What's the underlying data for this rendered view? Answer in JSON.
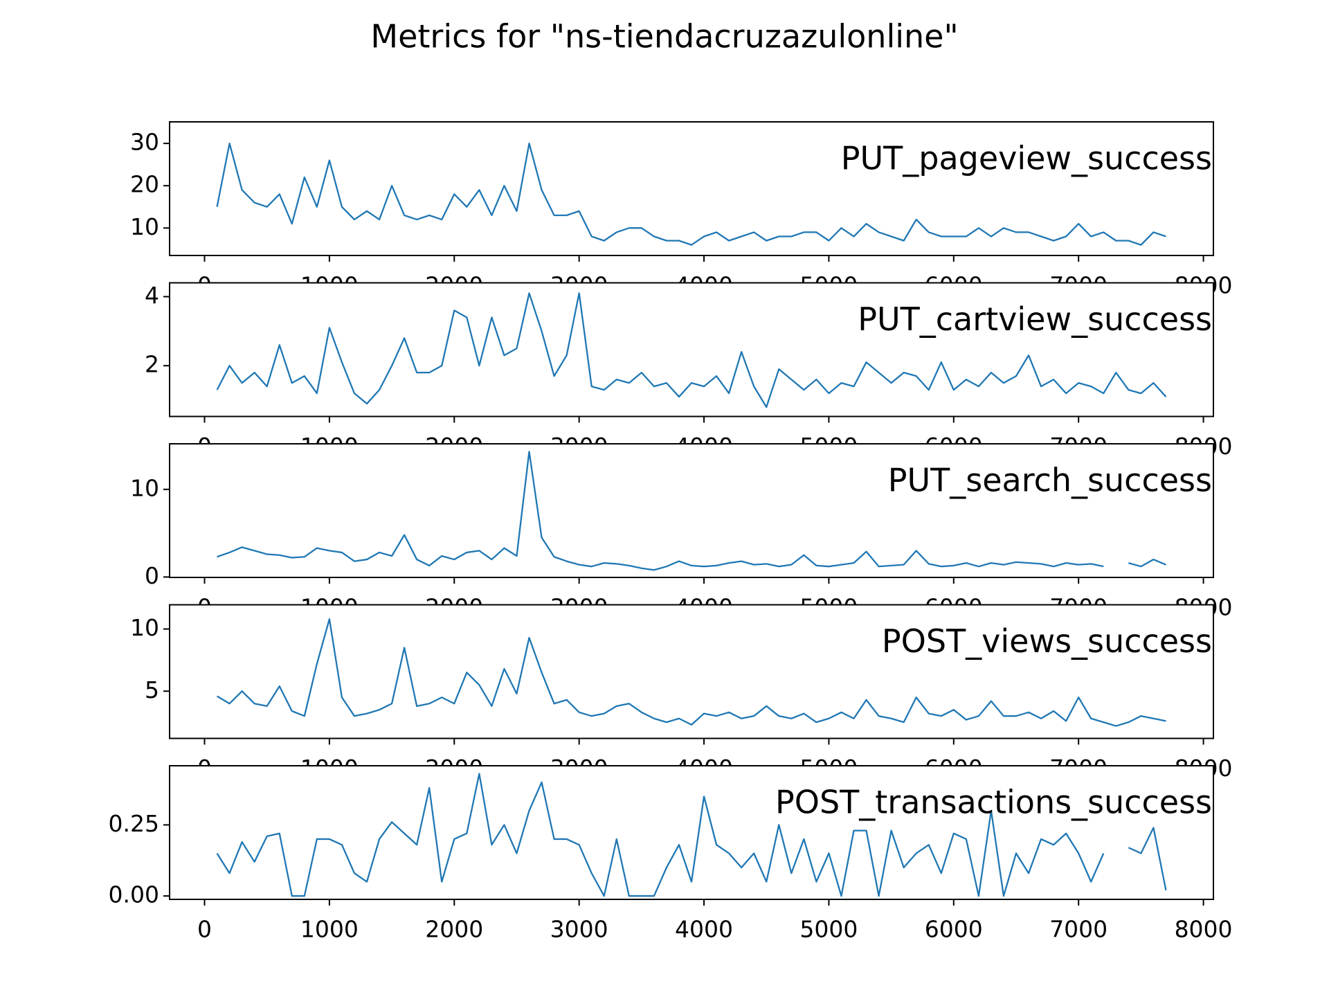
{
  "title": "Metrics for \"ns-tiendacruzazulonline\"",
  "chart_data": [
    {
      "type": "line",
      "x": [
        100,
        200,
        300,
        400,
        500,
        600,
        700,
        800,
        900,
        1000,
        1100,
        1200,
        1300,
        1400,
        1500,
        1600,
        1700,
        1800,
        1900,
        2000,
        2100,
        2200,
        2300,
        2400,
        2500,
        2600,
        2700,
        2800,
        2900,
        3000,
        3100,
        3200,
        3300,
        3400,
        3500,
        3600,
        3700,
        3800,
        3900,
        4000,
        4100,
        4200,
        4300,
        4400,
        4500,
        4600,
        4700,
        4800,
        4900,
        5000,
        5100,
        5200,
        5300,
        5400,
        5500,
        5600,
        5700,
        5800,
        5900,
        6000,
        6100,
        6200,
        6300,
        6400,
        6500,
        6600,
        6700,
        6800,
        6900,
        7000,
        7100,
        7200,
        7300,
        7400,
        7500,
        7600,
        7700
      ],
      "series": [
        {
          "name": "PUT_pageview_success",
          "color": "#1f77b4",
          "values": [
            15,
            30,
            19,
            16,
            15,
            18,
            11,
            22,
            15,
            26,
            15,
            12,
            14,
            12,
            20,
            13,
            12,
            13,
            12,
            18,
            15,
            19,
            13,
            20,
            14,
            30,
            19,
            13,
            13,
            14,
            8,
            7,
            9,
            10,
            10,
            8,
            7,
            7,
            6,
            8,
            9,
            7,
            8,
            9,
            7,
            8,
            8,
            9,
            9,
            7,
            10,
            8,
            11,
            9,
            8,
            7,
            12,
            9,
            8,
            8,
            8,
            10,
            8,
            10,
            9,
            9,
            8,
            7,
            8,
            11,
            8,
            9,
            7,
            7,
            6,
            9,
            8
          ]
        }
      ],
      "xlim": [
        -280,
        8080
      ],
      "ylim": [
        3.5,
        35.1
      ],
      "xticks": [
        0,
        1000,
        2000,
        3000,
        4000,
        5000,
        6000,
        7000,
        8000
      ],
      "yticks": [
        10,
        20,
        30
      ]
    },
    {
      "type": "line",
      "x": [
        100,
        200,
        300,
        400,
        500,
        600,
        700,
        800,
        900,
        1000,
        1100,
        1200,
        1300,
        1400,
        1500,
        1600,
        1700,
        1800,
        1900,
        2000,
        2100,
        2200,
        2300,
        2400,
        2500,
        2600,
        2700,
        2800,
        2900,
        3000,
        3100,
        3200,
        3300,
        3400,
        3500,
        3600,
        3700,
        3800,
        3900,
        4000,
        4100,
        4200,
        4300,
        4400,
        4500,
        4600,
        4700,
        4800,
        4900,
        5000,
        5100,
        5200,
        5300,
        5400,
        5500,
        5600,
        5700,
        5800,
        5900,
        6000,
        6100,
        6200,
        6300,
        6400,
        6500,
        6600,
        6700,
        6800,
        6900,
        7000,
        7100,
        7200,
        7300,
        7400,
        7500,
        7600,
        7700
      ],
      "series": [
        {
          "name": "PUT_cartview_success",
          "color": "#1f77b4",
          "values": [
            1.3,
            2.0,
            1.5,
            1.8,
            1.4,
            2.6,
            1.5,
            1.7,
            1.2,
            3.1,
            2.1,
            1.2,
            0.9,
            1.3,
            2.0,
            2.8,
            1.8,
            1.8,
            2.0,
            3.6,
            3.4,
            2.0,
            3.4,
            2.3,
            2.5,
            4.1,
            3.0,
            1.7,
            2.3,
            4.1,
            1.4,
            1.3,
            1.6,
            1.5,
            1.8,
            1.4,
            1.5,
            1.1,
            1.5,
            1.4,
            1.7,
            1.2,
            2.4,
            1.4,
            0.8,
            1.9,
            1.6,
            1.3,
            1.6,
            1.2,
            1.5,
            1.4,
            2.1,
            1.8,
            1.5,
            1.8,
            1.7,
            1.3,
            2.1,
            1.3,
            1.6,
            1.4,
            1.8,
            1.5,
            1.7,
            2.3,
            1.4,
            1.6,
            1.2,
            1.5,
            1.4,
            1.2,
            1.8,
            1.3,
            1.2,
            1.5,
            1.1
          ]
        }
      ],
      "xlim": [
        -280,
        8080
      ],
      "ylim": [
        0.53,
        4.4
      ],
      "xticks": [
        0,
        1000,
        2000,
        3000,
        4000,
        5000,
        6000,
        7000,
        8000
      ],
      "yticks": [
        2,
        4
      ]
    },
    {
      "type": "line",
      "x": [
        100,
        200,
        300,
        400,
        500,
        600,
        700,
        800,
        900,
        1000,
        1100,
        1200,
        1300,
        1400,
        1500,
        1600,
        1700,
        1800,
        1900,
        2000,
        2100,
        2200,
        2300,
        2400,
        2500,
        2600,
        2700,
        2800,
        2900,
        3000,
        3100,
        3200,
        3300,
        3400,
        3500,
        3600,
        3700,
        3800,
        3900,
        4000,
        4100,
        4200,
        4300,
        4400,
        4500,
        4600,
        4700,
        4800,
        4900,
        5000,
        5100,
        5200,
        5300,
        5400,
        5500,
        5600,
        5700,
        5800,
        5900,
        6000,
        6100,
        6200,
        6300,
        6400,
        6500,
        6600,
        6700,
        6800,
        6900,
        7000,
        7100,
        7200,
        7300,
        7400,
        7500,
        7600,
        7700
      ],
      "series": [
        {
          "name": "PUT_search_success",
          "color": "#1f77b4",
          "values": [
            2.3,
            2.8,
            3.4,
            3.0,
            2.6,
            2.5,
            2.2,
            2.3,
            3.3,
            3.0,
            2.8,
            1.8,
            2.0,
            2.8,
            2.4,
            4.8,
            2.0,
            1.3,
            2.4,
            2.0,
            2.8,
            3.0,
            2.0,
            3.3,
            2.4,
            14.3,
            4.5,
            2.3,
            1.8,
            1.4,
            1.2,
            1.6,
            1.5,
            1.3,
            1.0,
            0.8,
            1.2,
            1.8,
            1.3,
            1.2,
            1.3,
            1.6,
            1.8,
            1.4,
            1.5,
            1.2,
            1.4,
            2.5,
            1.3,
            1.2,
            1.4,
            1.6,
            2.9,
            1.2,
            1.3,
            1.4,
            3.0,
            1.5,
            1.2,
            1.3,
            1.6,
            1.2,
            1.6,
            1.4,
            1.7,
            1.6,
            1.5,
            1.2,
            1.6,
            1.4,
            1.5,
            1.2,
            null,
            1.6,
            1.2,
            2.0,
            1.4
          ]
        }
      ],
      "xlim": [
        -280,
        8080
      ],
      "ylim": [
        -0.05,
        15.2
      ],
      "xticks": [
        0,
        1000,
        2000,
        3000,
        4000,
        5000,
        6000,
        7000,
        8000
      ],
      "yticks": [
        0,
        10
      ]
    },
    {
      "type": "line",
      "x": [
        100,
        200,
        300,
        400,
        500,
        600,
        700,
        800,
        900,
        1000,
        1100,
        1200,
        1300,
        1400,
        1500,
        1600,
        1700,
        1800,
        1900,
        2000,
        2100,
        2200,
        2300,
        2400,
        2500,
        2600,
        2700,
        2800,
        2900,
        3000,
        3100,
        3200,
        3300,
        3400,
        3500,
        3600,
        3700,
        3800,
        3900,
        4000,
        4100,
        4200,
        4300,
        4400,
        4500,
        4600,
        4700,
        4800,
        4900,
        5000,
        5100,
        5200,
        5300,
        5400,
        5500,
        5600,
        5700,
        5800,
        5900,
        6000,
        6100,
        6200,
        6300,
        6400,
        6500,
        6600,
        6700,
        6800,
        6900,
        7000,
        7100,
        7200,
        7300,
        7400,
        7500,
        7600,
        7700
      ],
      "series": [
        {
          "name": "POST_views_success",
          "color": "#1f77b4",
          "values": [
            4.6,
            4.0,
            5.0,
            4.0,
            3.8,
            5.4,
            3.4,
            3.0,
            7.2,
            10.8,
            4.5,
            3.0,
            3.2,
            3.5,
            4.0,
            8.5,
            3.8,
            4.0,
            4.5,
            4.0,
            6.5,
            5.5,
            3.8,
            6.8,
            4.8,
            9.3,
            6.5,
            4.0,
            4.3,
            3.3,
            3.0,
            3.2,
            3.8,
            4.0,
            3.3,
            2.8,
            2.5,
            2.8,
            2.3,
            3.2,
            3.0,
            3.3,
            2.8,
            3.0,
            3.8,
            3.0,
            2.8,
            3.2,
            2.5,
            2.8,
            3.3,
            2.8,
            4.3,
            3.0,
            2.8,
            2.5,
            4.5,
            3.2,
            3.0,
            3.5,
            2.7,
            3.0,
            4.2,
            3.0,
            3.0,
            3.3,
            2.8,
            3.4,
            2.6,
            4.5,
            2.8,
            2.5,
            2.2,
            2.5,
            3.0,
            2.8,
            2.6
          ]
        }
      ],
      "xlim": [
        -280,
        8080
      ],
      "ylim": [
        1.2,
        11.95
      ],
      "xticks": [
        0,
        1000,
        2000,
        3000,
        4000,
        5000,
        6000,
        7000,
        8000
      ],
      "yticks": [
        5,
        10
      ]
    },
    {
      "type": "line",
      "x": [
        100,
        200,
        300,
        400,
        500,
        600,
        700,
        800,
        900,
        1000,
        1100,
        1200,
        1300,
        1400,
        1500,
        1600,
        1700,
        1800,
        1900,
        2000,
        2100,
        2200,
        2300,
        2400,
        2500,
        2600,
        2700,
        2800,
        2900,
        3000,
        3100,
        3200,
        3300,
        3400,
        3500,
        3600,
        3700,
        3800,
        3900,
        4000,
        4100,
        4200,
        4300,
        4400,
        4500,
        4600,
        4700,
        4800,
        4900,
        5000,
        5100,
        5200,
        5300,
        5400,
        5500,
        5600,
        5700,
        5800,
        5900,
        6000,
        6100,
        6200,
        6300,
        6400,
        6500,
        6600,
        6700,
        6800,
        6900,
        7000,
        7100,
        7200,
        7300,
        7400,
        7500,
        7600,
        7700
      ],
      "series": [
        {
          "name": "POST_transactions_success",
          "color": "#1f77b4",
          "values": [
            0.15,
            0.08,
            0.19,
            0.12,
            0.21,
            0.22,
            0,
            0,
            0.2,
            0.2,
            0.18,
            0.08,
            0.05,
            0.2,
            0.26,
            0.22,
            0.18,
            0.38,
            0.05,
            0.2,
            0.22,
            0.43,
            0.18,
            0.25,
            0.15,
            0.3,
            0.4,
            0.2,
            0.2,
            0.18,
            0.08,
            0,
            0.2,
            0,
            0,
            0,
            0.1,
            0.18,
            0.05,
            0.35,
            0.18,
            0.15,
            0.1,
            0.15,
            0.05,
            0.25,
            0.08,
            0.2,
            0.05,
            0.15,
            0,
            0.23,
            0.23,
            0,
            0.23,
            0.1,
            0.15,
            0.18,
            0.08,
            0.22,
            0.2,
            0,
            0.3,
            0,
            0.15,
            0.08,
            0.2,
            0.18,
            0.22,
            0.15,
            0.05,
            0.15,
            null,
            0.17,
            0.15,
            0.24,
            0.02
          ]
        }
      ],
      "xlim": [
        -280,
        8080
      ],
      "ylim": [
        -0.012,
        0.458
      ],
      "xticks": [
        0,
        1000,
        2000,
        3000,
        4000,
        5000,
        6000,
        7000,
        8000
      ],
      "yticks": [
        {
          "value": 0,
          "label": "0.00"
        },
        {
          "value": 0.25,
          "label": "0.25"
        }
      ]
    }
  ]
}
